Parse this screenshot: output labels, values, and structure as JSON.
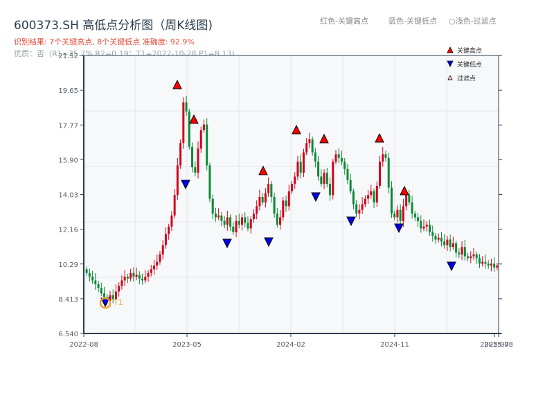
{
  "header": {
    "title": "600373.SH 高低点分析图（周K线图)",
    "result_line": "识别结果: 7个关键高点, 8个关键低点  准确度: 92.9%",
    "quality_line": "优质：否（R1=35.7%  R2=0.19；T1=2022-10-28 P1=8.13)",
    "legend_red": "红色-关键高点",
    "legend_blue": "蓝色-关键低点",
    "legend_light": "○浅色-过滤点"
  },
  "colors": {
    "up": "#d0021b",
    "down": "#0a8a35",
    "high_marker": "#ff0000",
    "low_marker": "#0000ee",
    "t1_ring": "#f0a030",
    "axis": "#2c3e50",
    "grid": "#e1e4e8",
    "plot_bg": "#f7f8fa"
  },
  "chart_data": {
    "type": "candlestick",
    "title": "600373.SH 高低点分析图（周K线图)",
    "xlabel": "",
    "ylabel": "",
    "ylim": [
      6.54,
      21.52
    ],
    "yticks": [
      "6.540",
      "8.413",
      "10.29",
      "12.16",
      "14.03",
      "15.90",
      "17.77",
      "19.65",
      "21.52"
    ],
    "xticks": [
      "2022-08",
      "2023-05",
      "2024-02",
      "2024-11",
      "2025-07",
      "2025-08"
    ],
    "legend": [
      {
        "label": "关键高点",
        "marker": "triangle-up",
        "color": "#ff0000"
      },
      {
        "label": "关键低点",
        "marker": "triangle-down",
        "color": "#0000ee"
      },
      {
        "label": "过滤点",
        "marker": "triangle-up-hollow",
        "color": "#ffcccc"
      }
    ],
    "annotation": {
      "label": "T1",
      "date": "2022-10-28",
      "price": 8.13
    },
    "key_highs": [
      {
        "approx_date": "2023-04",
        "price": 19.8
      },
      {
        "approx_date": "2023-06",
        "price": 17.9
      },
      {
        "approx_date": "2023-12",
        "price": 15.4
      },
      {
        "approx_date": "2024-03",
        "price": 17.5
      },
      {
        "approx_date": "2024-05",
        "price": 17.0
      },
      {
        "approx_date": "2024-09",
        "price": 17.1
      },
      {
        "approx_date": "2024-12",
        "price": 14.3
      }
    ],
    "key_lows": [
      {
        "approx_date": "2022-10",
        "price": 8.13
      },
      {
        "approx_date": "2023-05",
        "price": 14.9
      },
      {
        "approx_date": "2023-09",
        "price": 11.8
      },
      {
        "approx_date": "2023-12",
        "price": 11.8
      },
      {
        "approx_date": "2024-04",
        "price": 14.0
      },
      {
        "approx_date": "2024-07",
        "price": 12.9
      },
      {
        "approx_date": "2024-11",
        "price": 12.5
      },
      {
        "approx_date": "2025-04",
        "price": 10.2
      }
    ],
    "closes_weekly": [
      9.8,
      9.6,
      9.4,
      9.2,
      9.0,
      8.7,
      8.5,
      8.3,
      8.6,
      8.4,
      8.8,
      9.1,
      9.4,
      9.6,
      9.5,
      9.8,
      9.6,
      9.7,
      9.5,
      9.4,
      9.6,
      9.8,
      10.0,
      10.2,
      10.4,
      10.8,
      11.3,
      11.9,
      12.3,
      12.9,
      14.0,
      15.6,
      16.8,
      19.0,
      18.5,
      16.6,
      15.5,
      15.2,
      16.5,
      17.5,
      17.8,
      15.6,
      13.8,
      13.0,
      12.8,
      12.9,
      12.6,
      12.4,
      12.8,
      12.3,
      12.0,
      12.6,
      12.4,
      12.8,
      12.5,
      12.2,
      12.7,
      13.0,
      13.4,
      13.9,
      13.6,
      14.1,
      14.6,
      13.9,
      13.0,
      12.4,
      12.8,
      13.7,
      13.4,
      14.2,
      14.6,
      15.0,
      15.8,
      15.2,
      16.3,
      16.8,
      17.0,
      16.3,
      15.8,
      15.0,
      14.6,
      15.2,
      14.6,
      14.0,
      15.8,
      16.2,
      16.0,
      15.8,
      15.4,
      14.8,
      14.2,
      13.5,
      13.0,
      13.2,
      13.5,
      13.8,
      14.0,
      14.2,
      13.6,
      14.5,
      15.8,
      16.2,
      16.0,
      14.4,
      13.0,
      12.8,
      13.2,
      12.6,
      13.4,
      14.0,
      13.6,
      13.0,
      12.8,
      12.6,
      12.2,
      12.3,
      12.4,
      12.0,
      11.8,
      11.6,
      11.7,
      11.5,
      11.3,
      11.6,
      11.2,
      11.4,
      10.9,
      10.8,
      11.2,
      10.7,
      10.6,
      10.7,
      10.8,
      10.6,
      10.3,
      10.4,
      10.3,
      10.2,
      10.3,
      10.1,
      10.2
    ]
  }
}
